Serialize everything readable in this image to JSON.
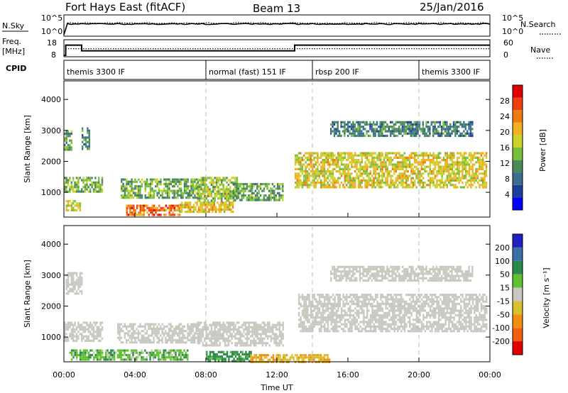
{
  "header": {
    "station": "Fort Hays East (fitACF)",
    "beam": "Beam 13",
    "date": "25/Jan/2016"
  },
  "noise_panel": {
    "left_label": "N.Sky",
    "right_label": "N.Search",
    "left_ticks": [
      "10^5",
      "10^0"
    ],
    "right_ticks": [
      "10^5",
      "10^0"
    ],
    "nsky_level": 1000,
    "nsearch_level": 1200
  },
  "freq_panel": {
    "left_label_1": "Freq.",
    "left_label_2": "[MHz]",
    "right_label": "Nave",
    "left_ticks": [
      "18",
      "8"
    ],
    "right_ticks": [
      "60",
      "0"
    ],
    "freq_steps": [
      {
        "start": 0.0,
        "end": 0.1,
        "mhz": 8
      },
      {
        "start": 0.1,
        "end": 1.0,
        "mhz": 17
      },
      {
        "start": 1.0,
        "end": 13.0,
        "mhz": 12
      },
      {
        "start": 13.0,
        "end": 24.0,
        "mhz": 17
      }
    ],
    "nave_level": 28
  },
  "cpid": {
    "label": "CPID",
    "segments": [
      {
        "start": 0.0,
        "end": 8.0,
        "name": "themis 3300 IF"
      },
      {
        "start": 8.0,
        "end": 14.0,
        "name": "normal (fast) 151 IF"
      },
      {
        "start": 14.0,
        "end": 20.0,
        "name": "rbsp 200 IF"
      },
      {
        "start": 20.0,
        "end": 24.0,
        "name": "themis 3300 IF"
      }
    ]
  },
  "colors": {
    "power_scale": [
      "#0000ff",
      "#1c3f9e",
      "#3b6e8e",
      "#4a8a5a",
      "#7abf3a",
      "#c8d42a",
      "#f0b020",
      "#f07a10",
      "#f04010",
      "#e00000"
    ],
    "velocity_scale": [
      "#2020c0",
      "#3a70a8",
      "#2a8a4a",
      "#60c030",
      "#c8c8c0",
      "#d8c030",
      "#f09010",
      "#f06010",
      "#e00000"
    ]
  },
  "chart_data": [
    {
      "type": "heatmap",
      "name": "power",
      "ylabel": "Slant Range [km]",
      "ylim": [
        200,
        4600
      ],
      "y_ticks": [
        1000,
        2000,
        3000,
        4000
      ],
      "xlim": [
        0,
        24
      ],
      "colorbar_label": "Power [dB]",
      "colorbar_range": [
        0,
        32
      ],
      "colorbar_ticks": [
        4,
        8,
        12,
        16,
        20,
        24,
        28
      ],
      "regions": [
        {
          "t0": 0.0,
          "t1": 0.4,
          "r0": 2400,
          "r1": 3000,
          "v": 12
        },
        {
          "t0": 1.0,
          "t1": 1.4,
          "r0": 2400,
          "r1": 3100,
          "v": 10
        },
        {
          "t0": 0.0,
          "t1": 2.2,
          "r0": 1000,
          "r1": 1500,
          "v": 14
        },
        {
          "t0": 0.1,
          "t1": 0.9,
          "r0": 450,
          "r1": 750,
          "v": 18
        },
        {
          "t0": 3.2,
          "t1": 7.6,
          "r0": 800,
          "r1": 1450,
          "v": 13
        },
        {
          "t0": 3.5,
          "t1": 6.5,
          "r0": 250,
          "r1": 600,
          "v": 26
        },
        {
          "t0": 6.5,
          "t1": 9.5,
          "r0": 350,
          "r1": 700,
          "v": 20
        },
        {
          "t0": 7.5,
          "t1": 9.8,
          "r0": 700,
          "r1": 1500,
          "v": 16
        },
        {
          "t0": 9.5,
          "t1": 12.3,
          "r0": 750,
          "r1": 1300,
          "v": 12
        },
        {
          "t0": 13.0,
          "t1": 23.8,
          "r0": 1200,
          "r1": 2300,
          "v": 19
        },
        {
          "t0": 15.0,
          "t1": 23.0,
          "r0": 2800,
          "r1": 3300,
          "v": 9
        }
      ]
    },
    {
      "type": "heatmap",
      "name": "velocity",
      "ylabel": "Slant Range [km]",
      "xlabel": "Time UT",
      "ylim": [
        200,
        4600
      ],
      "y_ticks": [
        1000,
        2000,
        3000,
        4000
      ],
      "xlim": [
        0,
        24
      ],
      "x_ticks": [
        "00:00",
        "04:00",
        "08:00",
        "12:00",
        "16:00",
        "20:00",
        "00:00"
      ],
      "colorbar_label": "Velocity [m s⁻¹]",
      "colorbar_ticks": [
        "200",
        "100",
        "50",
        "15",
        "-15",
        "-50",
        "-100",
        "-200"
      ],
      "regions": [
        {
          "t0": 0.0,
          "t1": 2.2,
          "r0": 900,
          "r1": 1500,
          "v": 0
        },
        {
          "t0": 0.1,
          "t1": 1.0,
          "r0": 2400,
          "r1": 3100,
          "v": 0
        },
        {
          "t0": 3.0,
          "t1": 7.6,
          "r0": 800,
          "r1": 1450,
          "v": 0
        },
        {
          "t0": 0.3,
          "t1": 7.0,
          "r0": 250,
          "r1": 600,
          "v": 25
        },
        {
          "t0": 7.5,
          "t1": 12.3,
          "r0": 700,
          "r1": 1500,
          "v": 0
        },
        {
          "t0": 8.0,
          "t1": 10.5,
          "r0": 250,
          "r1": 550,
          "v": 40
        },
        {
          "t0": 10.5,
          "t1": 15.0,
          "r0": 200,
          "r1": 450,
          "v": -30
        },
        {
          "t0": 13.2,
          "t1": 23.8,
          "r0": 1200,
          "r1": 2400,
          "v": 0
        },
        {
          "t0": 15.0,
          "t1": 23.0,
          "r0": 2800,
          "r1": 3300,
          "v": 0
        }
      ]
    }
  ]
}
